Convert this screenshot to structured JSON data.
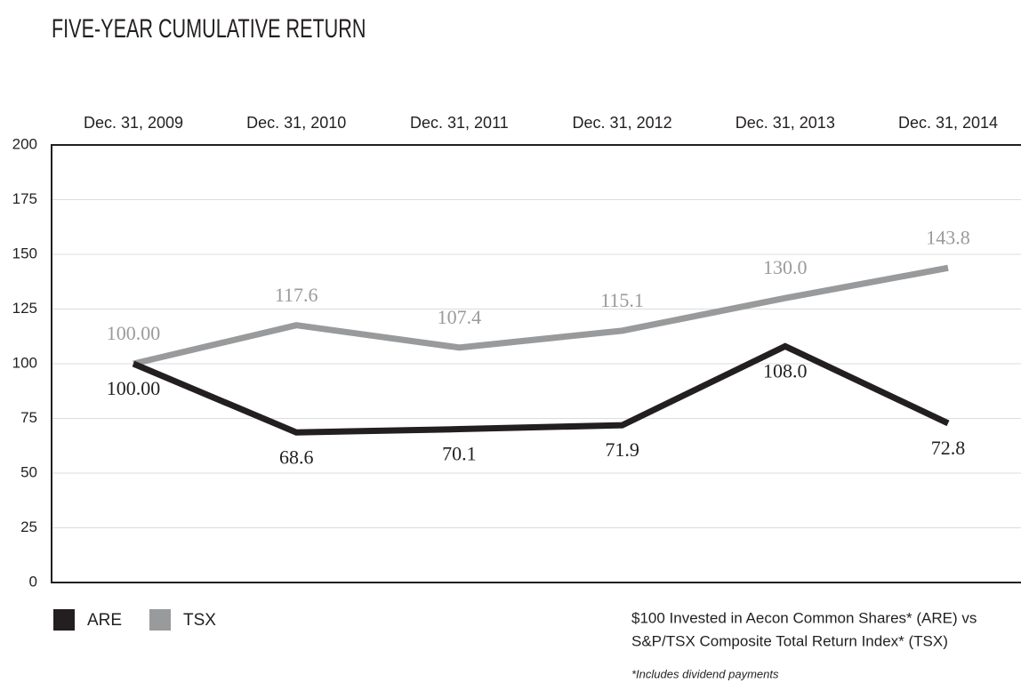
{
  "chart_data": {
    "type": "line",
    "title": "FIVE-YEAR CUMULATIVE RETURN",
    "categories": [
      "Dec. 31, 2009",
      "Dec. 31, 2010",
      "Dec. 31, 2011",
      "Dec. 31, 2012",
      "Dec. 31, 2013",
      "Dec. 31, 2014"
    ],
    "series": [
      {
        "name": "ARE",
        "color": "#231f20",
        "values": [
          100,
          68.6,
          70.1,
          71.9,
          108,
          72.8
        ],
        "value_labels": [
          "100.00",
          "68.6",
          "70.1",
          "71.9",
          "108.0",
          "72.8"
        ]
      },
      {
        "name": "TSX",
        "color": "#999a9c",
        "values": [
          100,
          117.6,
          107.4,
          115.1,
          130,
          143.8
        ],
        "value_labels": [
          "100.00",
          "117.6",
          "107.4",
          "115.1",
          "130.0",
          "143.8"
        ]
      }
    ],
    "ylim": [
      0,
      200
    ],
    "yticks": [
      0,
      25,
      50,
      75,
      100,
      125,
      150,
      175,
      200
    ],
    "grid": true,
    "legend": "bottom-left",
    "notes": [
      "$100 Invested in Aecon Common Shares* (ARE) vs",
      "S&P/TSX Composite Total Return Index* (TSX)"
    ],
    "footnote": "*Includes dividend payments"
  }
}
